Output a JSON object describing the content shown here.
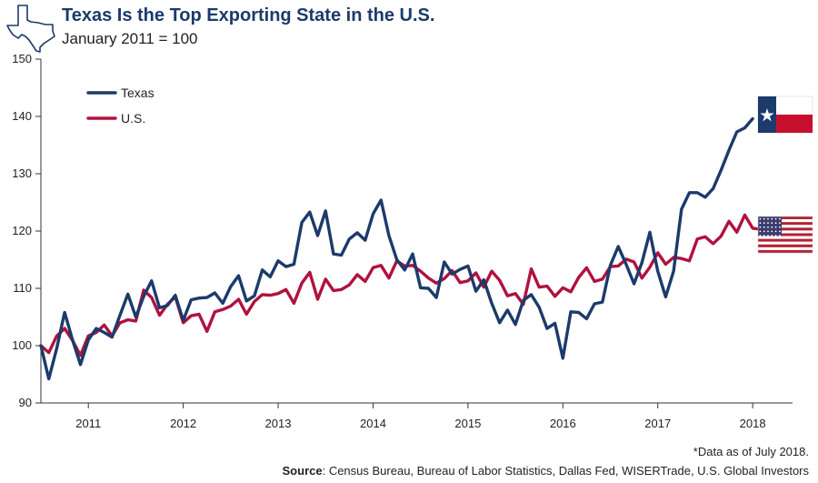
{
  "title": "Texas Is the Top Exporting State in the U.S.",
  "subtitle": "January 2011 = 100",
  "note": "*Data as of July 2018.",
  "source": {
    "label": "Source",
    "text": ": Census Bureau, Bureau of Labor Statistics, Dallas Fed, WISERTrade, U.S. Global Investors"
  },
  "icons": {
    "map": "texas-map-icon",
    "flags": [
      "texas-flag-icon",
      "us-flag-icon"
    ]
  },
  "colors": {
    "texas": "#1c3a6b",
    "us": "#b0123e",
    "axis": "#333333"
  },
  "chart_data": {
    "type": "line",
    "title": "Texas Is the Top Exporting State in the U.S.",
    "subtitle": "January 2011 = 100",
    "ylim": [
      90,
      150
    ],
    "yticks": [
      90,
      100,
      110,
      120,
      130,
      140,
      150
    ],
    "xlim": [
      2010.5,
      2018.42
    ],
    "xticks": [
      2011,
      2012,
      2013,
      2014,
      2015,
      2016,
      2017,
      2018
    ],
    "x_start": 2010.5,
    "x_step": 0.08333,
    "grid": false,
    "legend_position": "top-left",
    "series": [
      {
        "name": "Texas",
        "color": "#1c3a6b",
        "values": [
          100,
          94.2,
          99.5,
          105.8,
          101,
          96.7,
          101,
          103,
          102.3,
          101.5,
          105.3,
          109,
          105,
          108.6,
          111.3,
          106.6,
          107,
          108.8,
          104.4,
          108,
          108.3,
          108.4,
          109.2,
          107.4,
          110.3,
          112.2,
          107.8,
          108.7,
          113.2,
          112,
          114.8,
          113.8,
          114.2,
          121.5,
          123.3,
          119.2,
          123.5,
          116,
          115.8,
          118.6,
          119.7,
          118.4,
          123,
          125.4,
          119.2,
          115,
          113.2,
          116,
          110.1,
          110,
          108.4,
          114.6,
          112.5,
          113.3,
          113.9,
          109.5,
          111.5,
          107.4,
          104,
          106.2,
          103.7,
          107.9,
          108.9,
          106.7,
          103,
          103.9,
          97.8,
          105.9,
          105.8,
          104.7,
          107.3,
          107.6,
          114,
          117.3,
          114.2,
          110.8,
          114.5,
          119.8,
          113,
          108.5,
          113,
          123.8,
          126.7,
          126.7,
          125.9,
          127.4,
          130.6,
          134.1,
          137.3,
          138,
          139.6
        ]
      },
      {
        "name": "U.S.",
        "color": "#b0123e",
        "values": [
          100,
          98.8,
          101.7,
          103,
          100.9,
          98.3,
          101.7,
          102.3,
          103.6,
          101.7,
          104,
          104.5,
          104.3,
          109.7,
          108.4,
          105.3,
          107.2,
          108.5,
          104,
          105.2,
          105.5,
          102.5,
          105.9,
          106.3,
          106.9,
          108.1,
          105.5,
          107.7,
          108.9,
          108.8,
          109.1,
          109.8,
          107.4,
          110.9,
          112.8,
          108.1,
          111.6,
          109.6,
          109.8,
          110.6,
          112.4,
          111.2,
          113.6,
          114,
          111.8,
          114.8,
          113.9,
          114,
          113,
          111.8,
          110.9,
          111.7,
          113.1,
          111,
          111.3,
          112.7,
          110.2,
          113,
          111.4,
          108.7,
          109.1,
          107.2,
          113.4,
          110.2,
          110.4,
          108.6,
          110.1,
          109.4,
          111.9,
          113.6,
          111.2,
          111.6,
          113.8,
          113.9,
          115.1,
          114.6,
          111.8,
          113.7,
          116.2,
          114.2,
          115.4,
          115.2,
          114.8,
          118.6,
          119,
          117.8,
          119.1,
          121.7,
          119.8,
          122.8,
          120.5,
          120.3
        ]
      }
    ]
  }
}
